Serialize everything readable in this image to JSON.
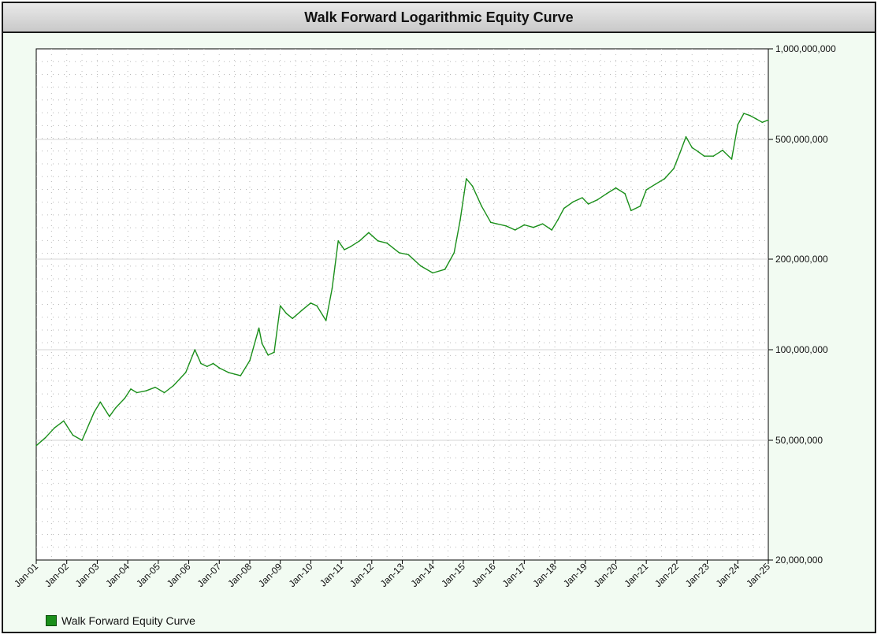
{
  "chart_data": {
    "type": "line",
    "title": "Walk Forward Logarithmic Equity Curve",
    "yscale": "log",
    "ylim": [
      20000000,
      1000000000
    ],
    "yticks": [
      {
        "value": 1000000000,
        "label": "1,000,000,000"
      },
      {
        "value": 500000000,
        "label": "500,000,000"
      },
      {
        "value": 200000000,
        "label": "200,000,000"
      },
      {
        "value": 100000000,
        "label": "100,000,000"
      },
      {
        "value": 50000000,
        "label": "50,000,000"
      },
      {
        "value": 20000000,
        "label": "20,000,000"
      }
    ],
    "xlim": [
      2001,
      2025
    ],
    "xticks": [
      "Jan-01",
      "Jan-02",
      "Jan-03",
      "Jan-04",
      "Jan-05",
      "Jan-06",
      "Jan-07",
      "Jan-08",
      "Jan-09",
      "Jan-10",
      "Jan-11",
      "Jan-12",
      "Jan-13",
      "Jan-14",
      "Jan-15",
      "Jan-16",
      "Jan-17",
      "Jan-18",
      "Jan-19",
      "Jan-20",
      "Jan-21",
      "Jan-22",
      "Jan-23",
      "Jan-24",
      "Jan-25"
    ],
    "grid": true,
    "legend_position": "bottom-left",
    "series": [
      {
        "name": "Walk Forward Equity Curve",
        "color": "#1a8f1a",
        "x": [
          2001.0,
          2001.3,
          2001.6,
          2001.9,
          2002.2,
          2002.5,
          2002.9,
          2003.1,
          2003.4,
          2003.6,
          2003.9,
          2004.1,
          2004.3,
          2004.6,
          2004.9,
          2005.2,
          2005.5,
          2005.9,
          2006.2,
          2006.4,
          2006.6,
          2006.8,
          2007.0,
          2007.3,
          2007.7,
          2008.0,
          2008.3,
          2008.4,
          2008.6,
          2008.8,
          2009.0,
          2009.2,
          2009.4,
          2009.7,
          2010.0,
          2010.2,
          2010.5,
          2010.7,
          2010.9,
          2011.1,
          2011.3,
          2011.6,
          2011.9,
          2012.2,
          2012.5,
          2012.9,
          2013.2,
          2013.6,
          2014.0,
          2014.4,
          2014.7,
          2014.9,
          2015.1,
          2015.3,
          2015.6,
          2015.9,
          2016.1,
          2016.4,
          2016.7,
          2017.0,
          2017.3,
          2017.6,
          2017.9,
          2018.1,
          2018.3,
          2018.6,
          2018.9,
          2019.1,
          2019.4,
          2019.7,
          2020.0,
          2020.3,
          2020.5,
          2020.8,
          2021.0,
          2021.3,
          2021.6,
          2021.9,
          2022.1,
          2022.3,
          2022.5,
          2022.7,
          2022.9,
          2023.2,
          2023.5,
          2023.8,
          2024.0,
          2024.2,
          2024.4,
          2024.6,
          2024.8,
          2025.0
        ],
        "values": [
          48000000,
          51000000,
          55000000,
          58000000,
          52000000,
          50000000,
          62000000,
          67000000,
          60000000,
          64000000,
          69000000,
          74000000,
          72000000,
          73000000,
          75000000,
          72000000,
          76000000,
          84000000,
          100000000,
          90000000,
          88000000,
          90000000,
          87000000,
          84000000,
          82000000,
          92000000,
          118000000,
          105000000,
          96000000,
          98000000,
          140000000,
          132000000,
          127000000,
          135000000,
          143000000,
          140000000,
          125000000,
          160000000,
          230000000,
          215000000,
          220000000,
          230000000,
          245000000,
          230000000,
          226000000,
          210000000,
          207000000,
          190000000,
          180000000,
          185000000,
          210000000,
          270000000,
          370000000,
          350000000,
          300000000,
          265000000,
          262000000,
          258000000,
          250000000,
          260000000,
          255000000,
          262000000,
          250000000,
          270000000,
          295000000,
          310000000,
          320000000,
          305000000,
          315000000,
          330000000,
          345000000,
          330000000,
          290000000,
          300000000,
          340000000,
          355000000,
          370000000,
          400000000,
          450000000,
          510000000,
          470000000,
          455000000,
          440000000,
          440000000,
          460000000,
          430000000,
          560000000,
          610000000,
          600000000,
          585000000,
          570000000,
          580000000
        ]
      }
    ]
  }
}
